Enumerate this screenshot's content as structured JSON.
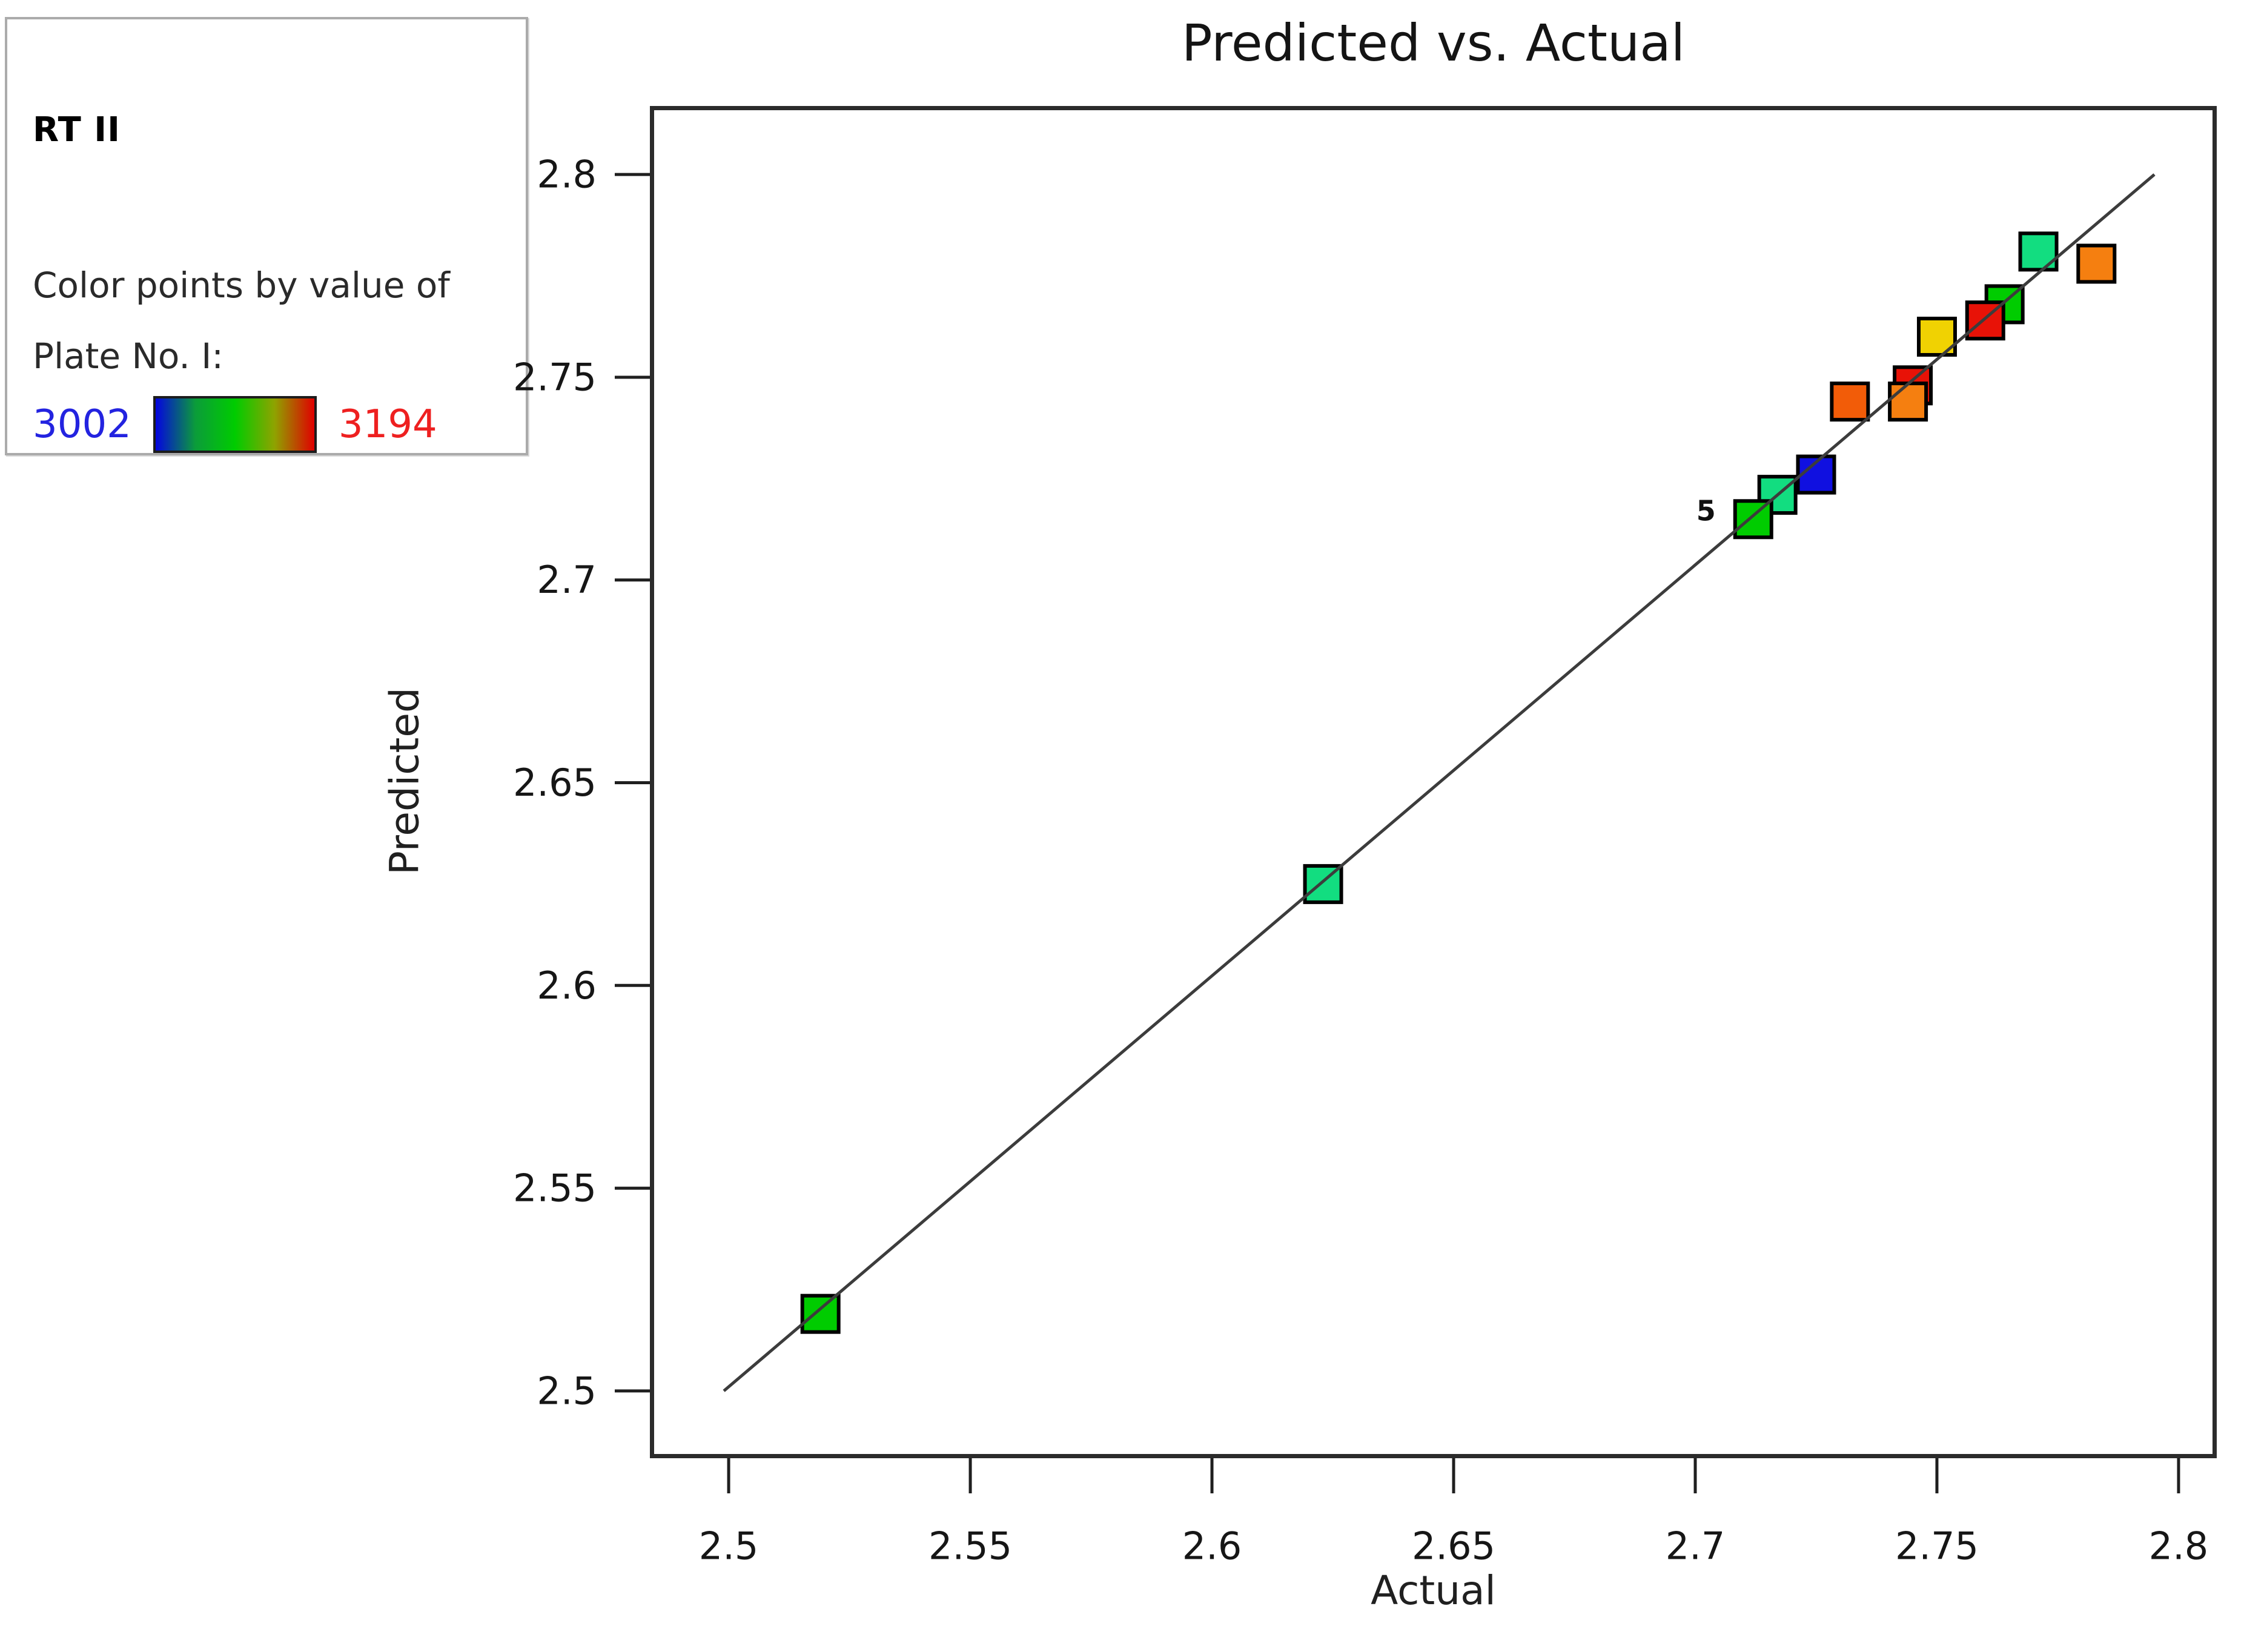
{
  "legend": {
    "title": "RT II",
    "line1": "Color points by value of",
    "line2": "Plate No. I:",
    "min_value": "3002",
    "max_value": "3194",
    "min_color": "#2323e0",
    "max_color": "#ee2020",
    "gradient": [
      "#0404e0",
      "#0b9c3a",
      "#00cc00",
      "#8fa300",
      "#e00000"
    ]
  },
  "chart_data": {
    "type": "scatter",
    "title": "Predicted vs. Actual",
    "xlabel": "Actual",
    "ylabel": "Predicted",
    "xlim": [
      2.4837,
      2.8079
    ],
    "ylim": [
      2.4834,
      2.8169
    ],
    "xticks": [
      2.5,
      2.55,
      2.6,
      2.65,
      2.7,
      2.75,
      2.8
    ],
    "xtick_labels": [
      "2.5",
      "2.55",
      "2.6",
      "2.65",
      "2.7",
      "2.75",
      "2.8"
    ],
    "yticks": [
      2.5,
      2.55,
      2.6,
      2.65,
      2.7,
      2.75,
      2.8
    ],
    "ytick_labels": [
      "2.5",
      "2.55",
      "2.6",
      "2.65",
      "2.7",
      "2.75",
      "2.8"
    ],
    "grid": false,
    "legend_position": "outside-top-left",
    "identity_line": {
      "x1": 2.499,
      "y1": 2.5,
      "x2": 2.795,
      "y2": 2.8
    },
    "marker_size": 60,
    "marker_border_color": "#000000",
    "axis_color": "#2b2b2b",
    "line_color": "#3c3c3c",
    "points": [
      {
        "actual": 2.519,
        "predicted": 2.519,
        "color": "#00cc00"
      },
      {
        "actual": 2.623,
        "predicted": 2.625,
        "color": "#12dd80"
      },
      {
        "actual": 2.725,
        "predicted": 2.726,
        "color": "#1010e0"
      },
      {
        "actual": 2.717,
        "predicted": 2.721,
        "color": "#12dd80"
      },
      {
        "actual": 2.712,
        "predicted": 2.715,
        "color": "#00cc00",
        "label": "5"
      },
      {
        "actual": 2.732,
        "predicted": 2.744,
        "color": "#f25c08"
      },
      {
        "actual": 2.745,
        "predicted": 2.748,
        "color": "#e81207"
      },
      {
        "actual": 2.744,
        "predicted": 2.744,
        "color": "#f57f10"
      },
      {
        "actual": 2.75,
        "predicted": 2.76,
        "color": "#f0d202"
      },
      {
        "actual": 2.764,
        "predicted": 2.768,
        "color": "#00cc00"
      },
      {
        "actual": 2.76,
        "predicted": 2.764,
        "color": "#e81207"
      },
      {
        "actual": 2.771,
        "predicted": 2.781,
        "color": "#12dd80"
      },
      {
        "actual": 2.783,
        "predicted": 2.778,
        "color": "#f57f10"
      }
    ]
  }
}
